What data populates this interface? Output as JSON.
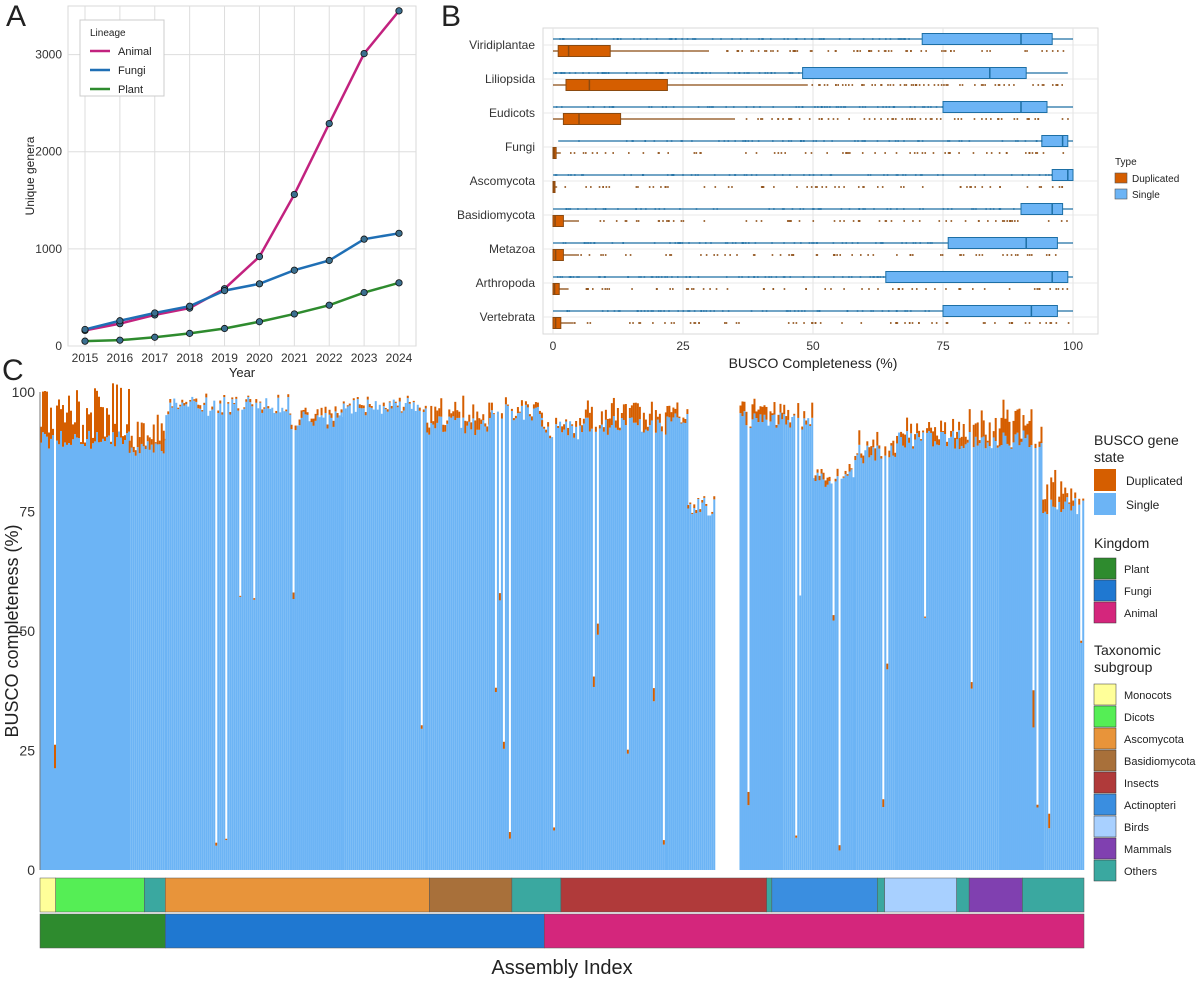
{
  "chart_data": [
    {
      "panel": "A",
      "type": "line",
      "xlabel": "Year",
      "ylabel": "Unique genera",
      "x": [
        2015,
        2016,
        2017,
        2018,
        2019,
        2020,
        2021,
        2022,
        2023,
        2024
      ],
      "ylim": [
        0,
        3500
      ],
      "yticks": [
        0,
        1000,
        2000,
        3000
      ],
      "legend_title": "Lineage",
      "legend_position": "top-left",
      "series": [
        {
          "name": "Animal",
          "color": "#c2227f",
          "values": [
            160,
            230,
            320,
            390,
            590,
            920,
            1560,
            2290,
            3010,
            3450
          ]
        },
        {
          "name": "Fungi",
          "color": "#1f6fb5",
          "values": [
            170,
            260,
            340,
            410,
            570,
            640,
            780,
            880,
            1100,
            1160
          ]
        },
        {
          "name": "Plant",
          "color": "#2e8b2e",
          "values": [
            50,
            60,
            90,
            130,
            180,
            250,
            330,
            420,
            550,
            650
          ]
        }
      ]
    },
    {
      "panel": "B",
      "type": "box",
      "xlabel": "BUSCO Completeness (%)",
      "ylabel": "",
      "xlim": [
        0,
        100
      ],
      "xticks": [
        0,
        25,
        50,
        75,
        100
      ],
      "legend_title": "Type",
      "legend_position": "right",
      "legend": [
        {
          "name": "Duplicated",
          "color": "#d55e00"
        },
        {
          "name": "Single",
          "color": "#6cb4f5"
        }
      ],
      "categories": [
        "Viridiplantae",
        "Liliopsida",
        "Eudicots",
        "Fungi",
        "Ascomycota",
        "Basidiomycota",
        "Metazoa",
        "Arthropoda",
        "Vertebrata"
      ],
      "series": [
        {
          "name": "Single",
          "stats": [
            [
              0,
              71,
              90,
              96,
              100
            ],
            [
              0,
              48,
              84,
              91,
              99
            ],
            [
              0,
              75,
              90,
              95,
              100
            ],
            [
              1,
              94,
              98,
              99,
              100
            ],
            [
              0,
              96,
              99,
              100,
              100
            ],
            [
              0,
              90,
              96,
              98,
              100
            ],
            [
              0,
              76,
              91,
              97,
              100
            ],
            [
              0,
              64,
              96,
              99,
              100
            ],
            [
              0,
              75,
              92,
              97,
              100
            ]
          ]
        },
        {
          "name": "Duplicated",
          "stats": [
            [
              0,
              1,
              3,
              11,
              30
            ],
            [
              0,
              2.5,
              7,
              22,
              49
            ],
            [
              0,
              2,
              5,
              13,
              35
            ],
            [
              0,
              0,
              0.2,
              0.6,
              1.5
            ],
            [
              0,
              0,
              0.1,
              0.3,
              0.8
            ],
            [
              0,
              0,
              0.4,
              2,
              5
            ],
            [
              0,
              0,
              0.5,
              2,
              5
            ],
            [
              0,
              0,
              0.3,
              1.2,
              3
            ],
            [
              0,
              0,
              0.5,
              1.5,
              4
            ]
          ]
        }
      ]
    },
    {
      "panel": "C",
      "type": "stacked-bar",
      "xlabel": "Assembly Index",
      "ylabel": "BUSCO completeness (%)",
      "ylim": [
        0,
        100
      ],
      "yticks": [
        0,
        25,
        50,
        75,
        100
      ],
      "legend_position": "right",
      "legend_state_title": "BUSCO gene state",
      "legend_state": [
        {
          "name": "Duplicated",
          "color": "#d55e00"
        },
        {
          "name": "Single",
          "color": "#6cb4f5"
        }
      ],
      "legend_kingdom_title": "Kingdom",
      "legend_kingdom": [
        {
          "name": "Plant",
          "color": "#2e8b2e"
        },
        {
          "name": "Fungi",
          "color": "#1f78d1"
        },
        {
          "name": "Animal",
          "color": "#d4267c"
        }
      ],
      "legend_subgroup_title": "Taxonomic subgroup",
      "legend_subgroup": [
        {
          "name": "Monocots",
          "color": "#ffff99"
        },
        {
          "name": "Dicots",
          "color": "#55ee55"
        },
        {
          "name": "Ascomycota",
          "color": "#e8943a"
        },
        {
          "name": "Basidiomycota",
          "color": "#a8703a"
        },
        {
          "name": "Insects",
          "color": "#b03a3a"
        },
        {
          "name": "Actinopteri",
          "color": "#3a8ee0"
        },
        {
          "name": "Birds",
          "color": "#a8d0ff"
        },
        {
          "name": "Mammals",
          "color": "#8040b0"
        },
        {
          "name": "Others",
          "color": "#3aa8a0"
        }
      ],
      "subgroup_strip": [
        {
          "group": "Monocots",
          "share": 0.015
        },
        {
          "group": "Dicots",
          "share": 0.085
        },
        {
          "group": "Others",
          "share": 0.02
        },
        {
          "group": "Ascomycota",
          "share": 0.253
        },
        {
          "group": "Basidiomycota",
          "share": 0.079
        },
        {
          "group": "Others",
          "share": 0.047
        },
        {
          "group": "Insects",
          "share": 0.197
        },
        {
          "group": "Others",
          "share": 0.005
        },
        {
          "group": "Actinopteri",
          "share": 0.101
        },
        {
          "group": "Others",
          "share": 0.007
        },
        {
          "group": "Birds",
          "share": 0.069
        },
        {
          "group": "Others",
          "share": 0.012
        },
        {
          "group": "Mammals",
          "share": 0.051
        },
        {
          "group": "Others",
          "share": 0.059
        }
      ],
      "kingdom_strip": [
        {
          "group": "Plant",
          "share": 0.12
        },
        {
          "group": "Fungi",
          "share": 0.363
        },
        {
          "group": "Animal",
          "share": 0.517
        }
      ],
      "profile": [
        {
          "from": 0.0,
          "to": 0.085,
          "single": 92,
          "dup": 7
        },
        {
          "from": 0.085,
          "to": 0.12,
          "single": 90,
          "dup": 4
        },
        {
          "from": 0.12,
          "to": 0.24,
          "single": 99,
          "dup": 0.5
        },
        {
          "from": 0.24,
          "to": 0.29,
          "single": 96,
          "dup": 1
        },
        {
          "from": 0.29,
          "to": 0.37,
          "single": 99,
          "dup": 0.5
        },
        {
          "from": 0.37,
          "to": 0.43,
          "single": 95,
          "dup": 3
        },
        {
          "from": 0.43,
          "to": 0.48,
          "single": 98,
          "dup": 1
        },
        {
          "from": 0.48,
          "to": 0.52,
          "single": 94,
          "dup": 1
        },
        {
          "from": 0.52,
          "to": 0.6,
          "single": 95,
          "dup": 3
        },
        {
          "from": 0.6,
          "to": 0.62,
          "single": 96,
          "dup": 2
        },
        {
          "from": 0.62,
          "to": 0.645,
          "single": 78,
          "dup": 0.5
        },
        {
          "from": 0.645,
          "to": 0.67,
          "single": 0,
          "dup": 0
        },
        {
          "from": 0.67,
          "to": 0.71,
          "single": 96,
          "dup": 2
        },
        {
          "from": 0.71,
          "to": 0.74,
          "single": 96,
          "dup": 2
        },
        {
          "from": 0.74,
          "to": 0.78,
          "single": 84,
          "dup": 1
        },
        {
          "from": 0.78,
          "to": 0.82,
          "single": 89,
          "dup": 2
        },
        {
          "from": 0.82,
          "to": 0.88,
          "single": 92,
          "dup": 2
        },
        {
          "from": 0.88,
          "to": 0.92,
          "single": 92,
          "dup": 4
        },
        {
          "from": 0.92,
          "to": 0.96,
          "single": 92,
          "dup": 5
        },
        {
          "from": 0.96,
          "to": 1.0,
          "single": 78,
          "dup": 5
        }
      ]
    }
  ],
  "panels": {
    "a": "A",
    "b": "B",
    "c": "C"
  }
}
